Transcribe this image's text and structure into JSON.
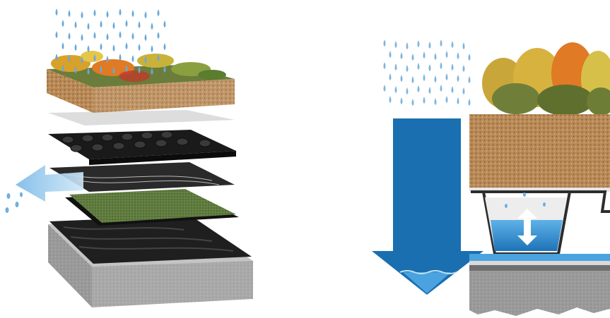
{
  "figure": {
    "left_panel": {
      "layers": [
        "vegetation-substrate",
        "filter-fleece",
        "drainage-retention-board",
        "protection-mat",
        "root-barrier-membrane",
        "waterproofing-membrane",
        "concrete-deck"
      ],
      "rain_icon": "raindrop-icon",
      "lateral_flow_icon": "arrow-left-icon"
    },
    "right_panel": {
      "rain_icon": "raindrop-icon",
      "runoff_icon": "arrow-down-icon",
      "retention_icon": "double-arrow-vertical-icon",
      "layers": [
        "vegetation",
        "substrate",
        "drainage-retention-cup",
        "stored-water",
        "membrane",
        "concrete-slab"
      ]
    },
    "colors": {
      "arrow_blue": "#1a6fb0",
      "water_blue": "#4aa3df",
      "light_water": "#9fd0f0",
      "substrate": "#b98a57",
      "concrete": "#9a9a9a",
      "mat_green": "#5e7a3e",
      "membrane_black": "#222222"
    }
  }
}
